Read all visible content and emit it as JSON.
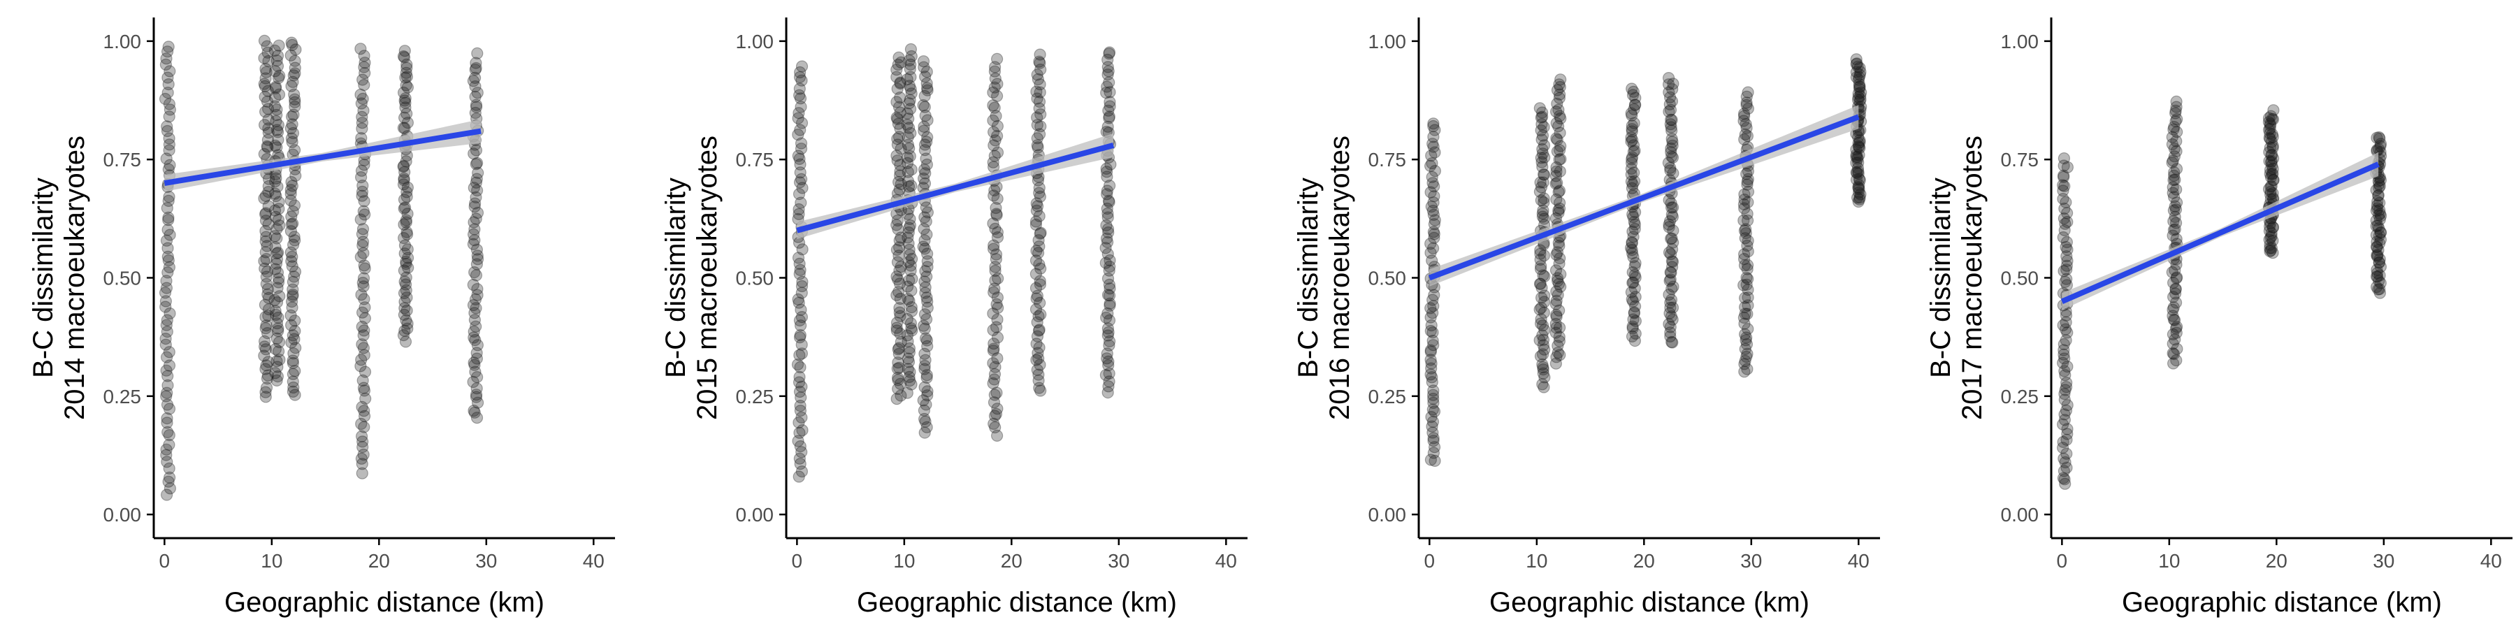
{
  "chart_data": [
    {
      "type": "scatter",
      "xlabel": "Geographic distance (km)",
      "ylabel_line1": "B-C dissimilarity",
      "ylabel_line2": "2014 macroeukaryotes",
      "xlim": [
        -1,
        42
      ],
      "ylim": [
        -0.05,
        1.05
      ],
      "x_ticks": [
        "0",
        "10",
        "20",
        "30",
        "40"
      ],
      "y_ticks": [
        "0.00",
        "0.25",
        "0.50",
        "0.75",
        "1.00"
      ],
      "grid": false,
      "fit": {
        "x": [
          0,
          29.5
        ],
        "y": [
          0.7,
          0.81
        ]
      },
      "columns": [
        {
          "x": 0.3,
          "ymin": 0.04,
          "ymax": 0.99
        },
        {
          "x": 9.5,
          "ymin": 0.25,
          "ymax": 1.0
        },
        {
          "x": 10.5,
          "ymin": 0.28,
          "ymax": 0.99
        },
        {
          "x": 12.0,
          "ymin": 0.25,
          "ymax": 1.0
        },
        {
          "x": 18.5,
          "ymin": 0.09,
          "ymax": 0.98
        },
        {
          "x": 22.5,
          "ymin": 0.37,
          "ymax": 0.98
        },
        {
          "x": 29.0,
          "ymin": 0.2,
          "ymax": 0.97
        }
      ]
    },
    {
      "type": "scatter",
      "xlabel": "Geographic distance (km)",
      "ylabel_line1": "B-C dissimilarity",
      "ylabel_line2": "2015 macroeukaryotes",
      "xlim": [
        -1,
        42
      ],
      "ylim": [
        -0.05,
        1.05
      ],
      "x_ticks": [
        "0",
        "10",
        "20",
        "30",
        "40"
      ],
      "y_ticks": [
        "0.00",
        "0.25",
        "0.50",
        "0.75",
        "1.00"
      ],
      "grid": false,
      "fit": {
        "x": [
          0,
          29.5
        ],
        "y": [
          0.6,
          0.78
        ]
      },
      "columns": [
        {
          "x": 0.3,
          "ymin": 0.08,
          "ymax": 0.95
        },
        {
          "x": 9.5,
          "ymin": 0.24,
          "ymax": 0.97
        },
        {
          "x": 10.5,
          "ymin": 0.26,
          "ymax": 0.98
        },
        {
          "x": 12.0,
          "ymin": 0.17,
          "ymax": 0.96
        },
        {
          "x": 18.5,
          "ymin": 0.17,
          "ymax": 0.96
        },
        {
          "x": 22.5,
          "ymin": 0.26,
          "ymax": 0.97
        },
        {
          "x": 29.0,
          "ymin": 0.26,
          "ymax": 0.98
        }
      ]
    },
    {
      "type": "scatter",
      "xlabel": "Geographic distance (km)",
      "ylabel_line1": "B-C dissimilarity",
      "ylabel_line2": "2016 macroeukaryotes",
      "xlim": [
        -1,
        42
      ],
      "ylim": [
        -0.05,
        1.05
      ],
      "x_ticks": [
        "0",
        "10",
        "20",
        "30",
        "40"
      ],
      "y_ticks": [
        "0.00",
        "0.25",
        "0.50",
        "0.75",
        "1.00"
      ],
      "grid": false,
      "fit": {
        "x": [
          0,
          40
        ],
        "y": [
          0.5,
          0.84
        ]
      },
      "columns": [
        {
          "x": 0.3,
          "ymin": 0.11,
          "ymax": 0.83
        },
        {
          "x": 10.5,
          "ymin": 0.27,
          "ymax": 0.86
        },
        {
          "x": 12.0,
          "ymin": 0.32,
          "ymax": 0.92
        },
        {
          "x": 19.0,
          "ymin": 0.37,
          "ymax": 0.9
        },
        {
          "x": 22.5,
          "ymin": 0.36,
          "ymax": 0.92
        },
        {
          "x": 29.5,
          "ymin": 0.3,
          "ymax": 0.89
        },
        {
          "x": 40.0,
          "ymin": 0.66,
          "ymax": 0.96
        }
      ]
    },
    {
      "type": "scatter",
      "xlabel": "Geographic distance (km)",
      "ylabel_line1": "B-C dissimilarity",
      "ylabel_line2": "2017 macroeukaryotes",
      "xlim": [
        -1,
        42
      ],
      "ylim": [
        -0.05,
        1.05
      ],
      "x_ticks": [
        "0",
        "10",
        "20",
        "30",
        "40"
      ],
      "y_ticks": [
        "0.00",
        "0.25",
        "0.50",
        "0.75",
        "1.00"
      ],
      "grid": false,
      "fit": {
        "x": [
          0,
          29.5
        ],
        "y": [
          0.45,
          0.74
        ]
      },
      "columns": [
        {
          "x": 0.3,
          "ymin": 0.06,
          "ymax": 0.75
        },
        {
          "x": 10.5,
          "ymin": 0.32,
          "ymax": 0.87
        },
        {
          "x": 19.5,
          "ymin": 0.55,
          "ymax": 0.85
        },
        {
          "x": 29.5,
          "ymin": 0.47,
          "ymax": 0.8
        }
      ]
    }
  ],
  "colors": {
    "points": "#1a1a1a",
    "fit_line": "#2946e6",
    "confidence_band": "#bfbfbf",
    "axis": "#000000",
    "tick_text": "#4d4d4d"
  }
}
